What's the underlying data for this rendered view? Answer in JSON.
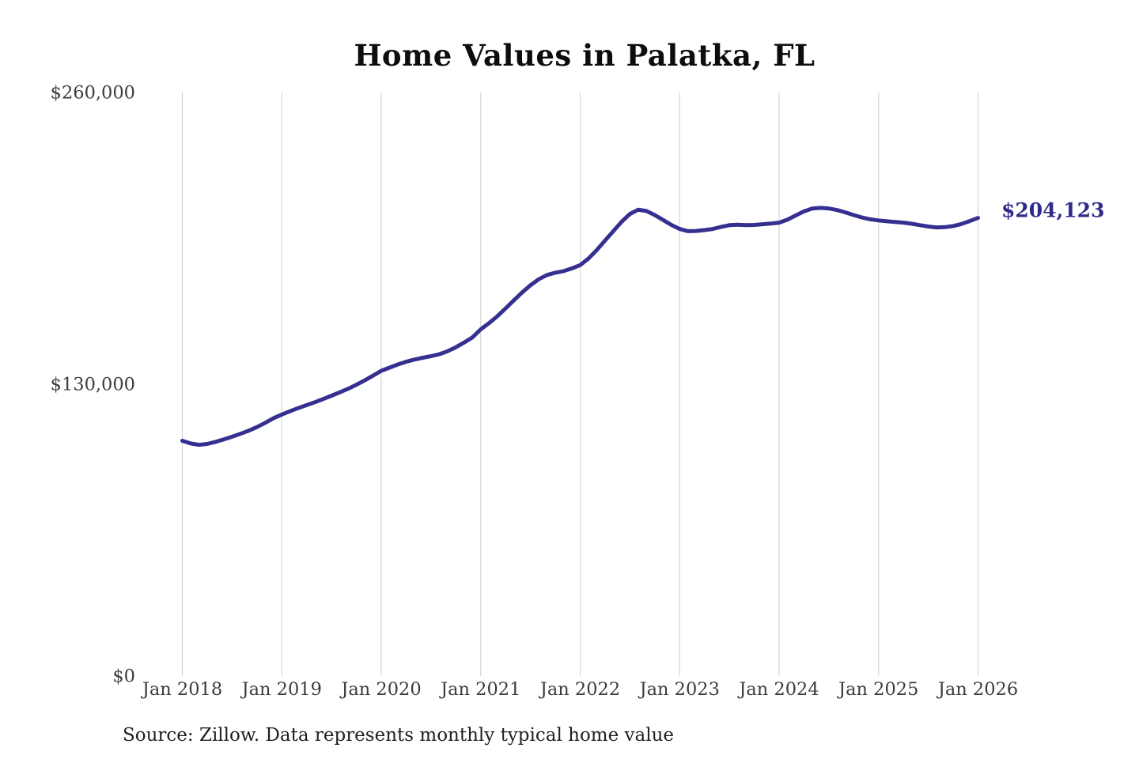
{
  "title": "Home Values in Palatka, FL",
  "source_note": "Source: Zillow. Data represents monthly typical home value",
  "end_label": "$204,123",
  "colors": {
    "line": "#353090",
    "grid": "#cdcdcd",
    "axis_text": "#3c3c3c",
    "title_text": "#0d0d0d",
    "end_label_text": "#2e2b8a",
    "background": "#ffffff"
  },
  "chart_data": {
    "type": "line",
    "title": "Home Values in Palatka, FL",
    "xlabel": "",
    "ylabel": "",
    "x_ticks": [
      "Jan 2018",
      "Jan 2019",
      "Jan 2020",
      "Jan 2021",
      "Jan 2022",
      "Jan 2023",
      "Jan 2024",
      "Jan 2025",
      "Jan 2026"
    ],
    "y_ticks": [
      {
        "label": "$260,000",
        "value": 260000
      },
      {
        "label": "$130,000",
        "value": 130000
      },
      {
        "label": "$0",
        "value": 0
      }
    ],
    "ylim": [
      0,
      260000
    ],
    "grid": "vertical-only",
    "legend": "none",
    "frequency": "monthly",
    "x_start": "Jan 2018",
    "x_end": "Jan 2026",
    "end_annotation": {
      "label": "$204,123",
      "value": 204123
    },
    "series": [
      {
        "name": "Typical home value (USD)",
        "values": [
          104800,
          103600,
          103000,
          103400,
          104300,
          105400,
          106600,
          107900,
          109300,
          110900,
          112800,
          114900,
          116500,
          118000,
          119400,
          120700,
          122000,
          123400,
          124900,
          126400,
          128000,
          129800,
          131700,
          133800,
          136000,
          137400,
          138800,
          140000,
          141000,
          141800,
          142500,
          143400,
          144700,
          146500,
          148600,
          150900,
          154500,
          157200,
          160300,
          163800,
          167400,
          170900,
          174100,
          176800,
          178700,
          179700,
          180400,
          181600,
          183100,
          186000,
          189800,
          194000,
          198200,
          202400,
          205900,
          207800,
          207200,
          205400,
          203200,
          201000,
          199200,
          198200,
          198300,
          198700,
          199200,
          200100,
          200900,
          201100,
          200900,
          201000,
          201300,
          201600,
          202000,
          203300,
          205200,
          207000,
          208300,
          208600,
          208300,
          207600,
          206600,
          205400,
          204300,
          203500,
          203000,
          202600,
          202300,
          202000,
          201500,
          200900,
          200300,
          199900,
          200000,
          200500,
          201400,
          202700,
          204123
        ]
      }
    ]
  }
}
